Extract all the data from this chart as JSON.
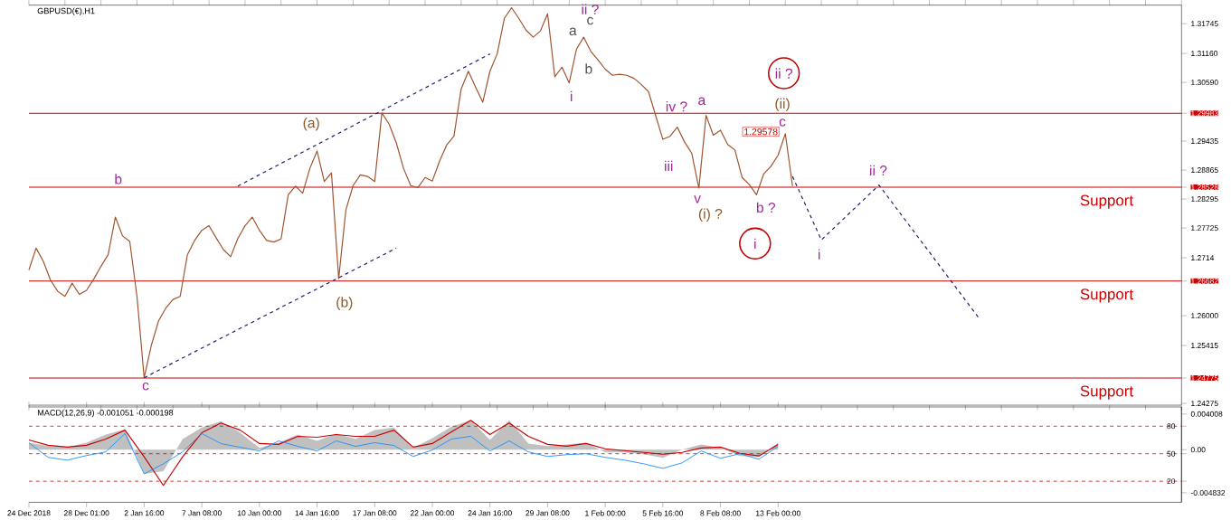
{
  "chart_data": [
    {
      "type": "line",
      "title": "GBPUSD(€),H1",
      "categories": [
        null,
        null,
        null,
        null,
        null,
        null,
        null,
        null,
        null,
        null,
        null,
        null,
        null,
        null,
        null,
        null,
        null,
        null,
        null,
        null,
        null,
        null,
        null,
        null,
        null,
        null,
        null,
        null,
        null,
        null,
        null,
        null,
        null,
        null,
        null,
        null,
        null,
        null,
        null,
        null,
        null,
        null,
        null,
        null,
        null,
        null,
        null,
        null,
        null,
        null,
        null,
        null,
        null,
        null,
        null,
        null,
        null,
        null,
        null,
        null,
        null,
        null,
        null,
        null,
        null,
        null,
        null,
        null,
        null,
        null,
        null,
        null,
        null,
        null,
        null,
        null,
        null,
        null,
        null,
        null,
        null,
        null,
        null,
        null,
        null,
        null,
        null,
        null,
        null,
        null,
        null,
        null,
        null,
        null,
        null,
        null,
        null,
        null,
        null,
        null,
        null,
        null,
        null,
        null,
        null,
        null,
        null,
        null,
        null,
        null,
        null,
        null,
        null,
        null,
        null,
        null,
        null,
        null,
        null,
        null,
        null,
        null,
        null,
        null,
        null,
        null,
        null,
        null,
        null,
        null,
        null,
        null,
        null,
        null,
        null,
        null,
        null,
        null,
        null,
        null,
        null,
        null,
        null,
        null,
        null,
        null,
        null,
        null,
        null,
        null,
        null,
        null,
        null,
        null,
        null,
        null,
        null,
        null,
        null,
        null,
        null
      ],
      "series": [
        {
          "color": "#a0522d",
          "values": [
            1.269,
            1.2733,
            1.2707,
            1.267,
            1.2648,
            1.2638,
            1.2664,
            1.2642,
            1.265,
            1.2672,
            1.2697,
            1.272,
            1.2794,
            1.2757,
            1.2746,
            1.2638,
            1.2478,
            1.2542,
            1.259,
            1.2615,
            1.2632,
            1.2638,
            1.272,
            1.2748,
            1.2768,
            1.2777,
            1.2753,
            1.273,
            1.2716,
            1.2752,
            1.2777,
            1.2794,
            1.2768,
            1.2748,
            1.2745,
            1.2751,
            1.2838,
            1.2855,
            1.2841,
            1.289,
            1.2924,
            1.2864,
            1.2881,
            1.2673,
            1.2808,
            1.2856,
            1.2877,
            1.2874,
            1.2864,
            1.2999,
            1.2977,
            1.294,
            1.289,
            1.2856,
            1.2852,
            1.2872,
            1.2865,
            1.2904,
            1.2936,
            1.2953,
            1.3046,
            1.3081,
            1.305,
            1.302,
            1.3081,
            1.3115,
            1.3185,
            1.3206,
            1.3185,
            1.3162,
            1.3148,
            1.316,
            1.3194,
            1.307,
            1.3089,
            1.3058,
            1.3124,
            1.3148,
            1.312,
            1.3103,
            1.3085,
            1.3073,
            1.3075,
            1.3073,
            1.3067,
            1.3055,
            1.3041,
            1.2994,
            1.2947,
            1.2953,
            1.2971,
            1.2942,
            1.292,
            1.2851,
            1.2994,
            1.2955,
            1.2965,
            1.2937,
            1.2926,
            1.2872,
            1.2858,
            1.2838,
            1.2879,
            1.2894,
            1.2916,
            1.2958,
            1.2855,
            null,
            null,
            null,
            null,
            null,
            null,
            null,
            null,
            null,
            null,
            null,
            null,
            null,
            null,
            null,
            null,
            null,
            null,
            null,
            null,
            null,
            null,
            null,
            null,
            null,
            null,
            null,
            null,
            null,
            null,
            null,
            null,
            null,
            null,
            null,
            null,
            null,
            null,
            null,
            null,
            null,
            null,
            null,
            null,
            null,
            null,
            null,
            null,
            null,
            null,
            null,
            null,
            null,
            null
          ]
        },
        {
          "color": "#1a1a6e",
          "line_style": "dashed",
          "values": [
            null,
            null,
            null,
            null,
            null,
            null,
            null,
            null,
            null,
            null,
            null,
            null,
            null,
            null,
            null,
            null,
            null,
            null,
            null,
            null,
            null,
            null,
            null,
            null,
            null,
            null,
            null,
            null,
            null,
            1.2855,
            null,
            null,
            null,
            null,
            null,
            null,
            null,
            null,
            null,
            null,
            null,
            null,
            null,
            null,
            null,
            null,
            null,
            null,
            null,
            null,
            null,
            null,
            null,
            null,
            null,
            null,
            null,
            null,
            null,
            null,
            null,
            null,
            null,
            null,
            1.3115,
            null,
            null,
            null,
            null,
            null,
            null,
            null,
            null,
            null,
            null,
            null,
            null,
            null,
            null,
            null,
            null,
            null,
            null,
            null,
            null,
            null,
            null,
            null,
            null,
            null,
            null,
            null,
            null,
            null,
            null,
            null,
            null,
            null,
            null,
            null,
            null,
            null,
            null,
            null,
            null,
            null,
            null,
            null,
            null,
            null,
            null,
            null,
            null,
            null,
            null,
            null,
            null,
            null,
            null,
            null,
            null,
            null,
            null,
            null,
            null,
            null,
            null,
            null,
            null,
            null,
            null,
            null,
            null,
            null,
            null,
            null,
            null,
            null,
            null,
            null,
            null,
            null,
            null,
            null,
            null,
            null,
            null,
            null,
            null,
            null,
            null,
            null,
            null,
            null,
            null,
            null,
            null,
            null,
            null,
            null,
            null
          ]
        },
        {
          "color": "#1a1a6e",
          "line_style": "dashed",
          "values": [
            null,
            null,
            null,
            null,
            null,
            null,
            null,
            null,
            null,
            null,
            null,
            null,
            null,
            null,
            null,
            null,
            1.2478,
            null,
            null,
            null,
            null,
            null,
            null,
            null,
            null,
            null,
            null,
            null,
            null,
            null,
            null,
            null,
            null,
            null,
            null,
            null,
            null,
            null,
            null,
            null,
            null,
            null,
            null,
            null,
            null,
            null,
            null,
            null,
            null,
            null,
            null,
            1.2733,
            null,
            null,
            null,
            null,
            null,
            null,
            null,
            null,
            null,
            null,
            null,
            null,
            null,
            null,
            null,
            null,
            null,
            null,
            null,
            null,
            null,
            null,
            null,
            null,
            null,
            null,
            null,
            null,
            null,
            null,
            null,
            null,
            null,
            null,
            null,
            null,
            null,
            null,
            null,
            null,
            null,
            null,
            null,
            null,
            null,
            null,
            null,
            null,
            null,
            null,
            null,
            null,
            null,
            null,
            null,
            null,
            null,
            null,
            null,
            null,
            null,
            null,
            null,
            null,
            null,
            null,
            null,
            null,
            null,
            null,
            null,
            null,
            null,
            null,
            null,
            null,
            null,
            null,
            null,
            null,
            null,
            null,
            null,
            null,
            null,
            null,
            null,
            null,
            null,
            null,
            null,
            null,
            null,
            null,
            null,
            null,
            null,
            null,
            null,
            null,
            null,
            null,
            null,
            null,
            null,
            null,
            null,
            null,
            null
          ]
        },
        {
          "color": "#1a1a6e",
          "line_style": "dashed",
          "values": [
            null,
            null,
            null,
            null,
            null,
            null,
            null,
            null,
            null,
            null,
            null,
            null,
            null,
            null,
            null,
            null,
            null,
            null,
            null,
            null,
            null,
            null,
            null,
            null,
            null,
            null,
            null,
            null,
            null,
            null,
            null,
            null,
            null,
            null,
            null,
            null,
            null,
            null,
            null,
            null,
            null,
            null,
            null,
            null,
            null,
            null,
            null,
            null,
            null,
            null,
            null,
            null,
            null,
            null,
            null,
            null,
            null,
            null,
            null,
            null,
            null,
            null,
            null,
            null,
            null,
            null,
            null,
            null,
            null,
            null,
            null,
            null,
            null,
            null,
            null,
            null,
            null,
            null,
            null,
            null,
            null,
            null,
            null,
            null,
            null,
            null,
            null,
            null,
            null,
            null,
            null,
            null,
            null,
            null,
            null,
            null,
            null,
            null,
            null,
            null,
            null,
            null,
            null,
            null,
            null,
            null,
            1.2874,
            null,
            null,
            null,
            1.2749,
            null,
            null,
            null,
            null,
            null,
            null,
            null,
            1.2857,
            null,
            null,
            null,
            null,
            null,
            null,
            null,
            null,
            null,
            null,
            null,
            null,
            null,
            1.2593,
            null,
            null,
            null,
            null,
            null,
            null,
            null,
            null,
            null,
            null,
            null,
            null,
            null,
            null,
            null,
            null,
            null,
            null,
            null,
            null,
            null,
            null,
            null,
            null,
            null,
            null,
            null,
            null
          ]
        }
      ],
      "ylim": [
        1.2424,
        1.3211
      ],
      "yticks": [
        1.24275,
        1.24775,
        1.25415,
        {
          "value": 1.26,
          "label": "1.26000"
        },
        1.26682,
        1.2714,
        1.27725,
        1.28295,
        1.28528,
        1.28865,
        1.29435,
        1.29983,
        {
          "value": 1.3059,
          "label": "1.30590"
        },
        {
          "value": 1.3116,
          "label": "1.31160"
        },
        1.31745
      ],
      "ref_lines": [
        {
          "axis": "y",
          "value": 1.29983,
          "label": null,
          "color": "#cc0000"
        },
        {
          "axis": "y",
          "value": 1.28528,
          "label": "Support",
          "color": "#cc0000"
        },
        {
          "axis": "y",
          "value": 1.26682,
          "label": "Support",
          "color": "#cc0000"
        },
        {
          "axis": "y",
          "value": 1.24775,
          "label": "Support",
          "color": "#cc0000"
        }
      ],
      "annotations": [
        "b",
        "c",
        "(a)",
        "(b)",
        "i",
        "a",
        "b",
        "c",
        "ii ?",
        "iv ?",
        "a",
        "iii",
        "v",
        "(i) ?",
        "b ?",
        "i",
        "ii ?",
        "(ii)",
        "c",
        "1.29578",
        "ii ?",
        "i"
      ]
    },
    {
      "type": "line",
      "title": "MACD(12,26,9) -0.001051 -0.000198",
      "categories": [
        "24 Dec 2018",
        null,
        null,
        "28 Dec 01:00",
        null,
        null,
        "2 Jan 16:00",
        null,
        null,
        "7 Jan 08:00",
        null,
        null,
        "10 Jan 00:00",
        null,
        null,
        "14 Jan 16:00",
        null,
        null,
        "17 Jan 08:00",
        null,
        null,
        "22 Jan 00:00",
        null,
        null,
        "24 Jan 16:00",
        null,
        null,
        "29 Jan 08:00",
        null,
        null,
        "1 Feb 00:00",
        null,
        null,
        "5 Feb 16:00",
        null,
        null,
        "8 Feb 08:00",
        null,
        null,
        "13 Feb 00:00",
        null,
        null,
        null,
        null,
        null,
        null,
        null,
        null,
        null,
        null,
        null,
        null,
        null,
        null,
        null,
        null,
        null,
        null,
        null,
        null,
        null
      ],
      "series": [
        {
          "type": "area",
          "color": "#c0c0c0",
          "values": [
            0.0008,
            0.0004,
            0.0003,
            0.0008,
            0.0017,
            0.0023,
            -0.0027,
            -0.0024,
            0.0012,
            0.0025,
            0.0032,
            0.0019,
            0.0002,
            0.0008,
            0.0017,
            0.001,
            0.0018,
            0.0012,
            0.0022,
            0.0025,
            0.0002,
            0.0013,
            0.0026,
            0.0033,
            0.0011,
            0.0033,
            0.0007,
            0.0004,
            0.0006,
            0.0008,
            -0.0003,
            -0.0003,
            -0.0005,
            -0.0009,
            0,
            0.0006,
            0.0002,
            -0.0007,
            -0.0008,
            0.0008,
            null,
            null,
            null,
            null,
            null,
            null,
            null,
            null,
            null,
            null,
            null,
            null,
            null,
            null,
            null,
            null,
            null,
            null,
            null,
            null,
            null
          ]
        },
        {
          "color": "#cc0000",
          "values": [
            0.0011,
            0.0005,
            0.0003,
            0.0005,
            0.0012,
            0.0022,
            -0.0008,
            -0.004,
            -0.0008,
            0.0019,
            0.003,
            0.0022,
            0.0007,
            0.0006,
            0.0015,
            0.0014,
            0.0017,
            0.0015,
            0.0015,
            0.0022,
            0.0003,
            0.0007,
            0.002,
            0.0033,
            0.0017,
            0.003,
            0.0015,
            0.0006,
            0.0004,
            0.0007,
            0.0001,
            -0.0001,
            -0.0003,
            -0.0005,
            -0.0003,
            0.0002,
            0.0003,
            -0.0004,
            -0.0007,
            0.0006,
            null,
            null,
            null,
            null,
            null,
            null,
            null,
            null,
            null,
            null,
            null,
            null,
            null,
            null,
            null,
            null,
            null,
            null,
            null,
            null,
            null
          ]
        },
        {
          "color": "#1e90ff",
          "axis": "y2",
          "values": [
            62,
            46,
            43,
            48,
            52,
            72,
            28,
            39,
            52,
            72,
            61,
            57,
            53,
            64,
            58,
            53,
            64,
            58,
            62,
            59,
            47,
            54,
            66,
            69,
            53,
            64,
            52,
            47,
            49,
            50,
            46,
            43,
            39,
            34,
            40,
            53,
            45,
            50,
            44,
            58,
            null,
            null,
            null,
            null,
            null,
            null,
            null,
            null,
            null,
            null,
            null,
            null,
            null,
            null,
            null,
            null,
            null,
            null,
            null,
            null,
            null
          ]
        }
      ],
      "ylim": [
        -0.0059,
        0.0048
      ],
      "yticks": [
        -0.004832,
        {
          "value": 0,
          "label": "0.00"
        },
        0.004008
      ],
      "y2lim": [
        -3,
        101
      ],
      "y2ticks": [
        20,
        50,
        80
      ],
      "ref_lines": [
        {
          "axis": "y2",
          "value": 80,
          "label": null,
          "color": "#cc0000",
          "line_style": "dashed"
        },
        {
          "axis": "y2",
          "value": 50,
          "label": null,
          "color": "#cc0000",
          "line_style": "dashed"
        },
        {
          "axis": "y2",
          "value": 20,
          "label": null,
          "color": "#cc0000",
          "line_style": "dashed"
        }
      ]
    }
  ]
}
